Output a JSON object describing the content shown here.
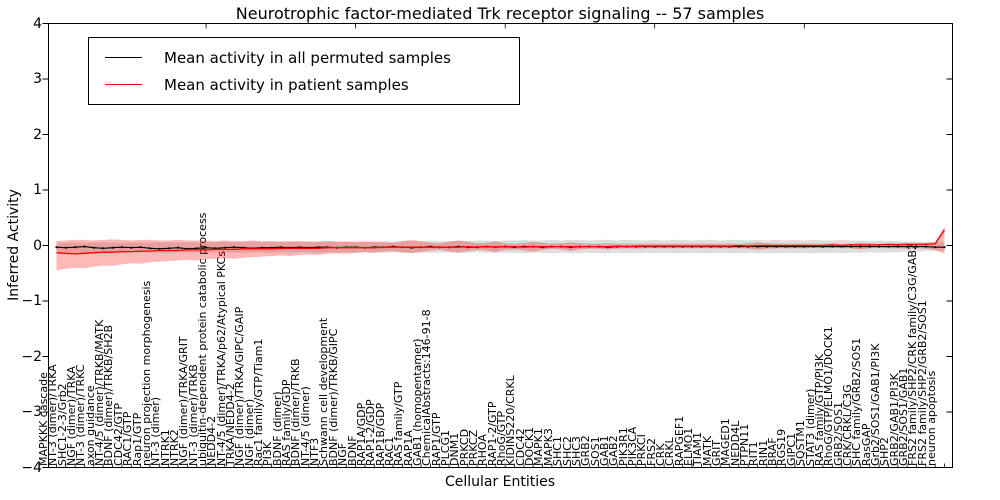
{
  "chart_data": {
    "type": "line",
    "title": "Neurotrophic factor-mediated Trk receptor signaling -- 57 samples",
    "xlabel": "Cellular Entities",
    "ylabel": "Inferred Activity",
    "ylim": [
      -4,
      4
    ],
    "yticks": [
      4,
      3,
      2,
      1,
      0,
      -1,
      -2,
      -3,
      -4
    ],
    "ytick_labels": [
      "4",
      "3",
      "2",
      "1",
      "0",
      "−1",
      "−2",
      "−3",
      "−4"
    ],
    "grid": false,
    "legend_position": "upper left",
    "n_points": 96,
    "x_labels": [
      "MAPKKK cascade",
      "NT-3 (dimer)/TRKA",
      "SHC1-2-3/Grb2",
      "NGF (dimer)/TRKA",
      "NT-3 (dimer)/TRKC",
      "axon guidance",
      "NT-4/5 (dimer)/TRKB/MATK",
      "BDNF (dimer)/TRKB/SH2B",
      "CDC42/GTP",
      "RAC1/GTP",
      "Rap1/GTP",
      "neuron projection morphogenesis",
      "NT-3 (dimer)",
      "NTRK1",
      "NTRK2",
      "NGF (dimer)/TRKA/GRIT",
      "NT-3 (dimer)/TRKB",
      "ubiquitin-dependent protein catabolic process",
      "NEDD4-2",
      "NT-4/5 (dimer)/TRKA/p62/Atypical PKCs",
      "TRKA/NEDD4-2",
      "NGF (dimer)/TRKA/GIPC/GAIP",
      "NGF (dimer)",
      "Rac1 family/GTP/Tiam1",
      "PI3K",
      "BDNF (dimer)",
      "RAS family/GDP",
      "BDNF (dimer)/TRKB",
      "NT-4/5 (dimer)",
      "NTF3",
      "Schwann cell development",
      "BDNF (dimer)/TRKB/GIPC",
      "NGF",
      "BDNF",
      "RAP1A/GDP",
      "RAP1-2/GDP",
      "RAP1B/GDP",
      "RAC1",
      "RAS family/GTP",
      "RAP1A",
      "GAB1 (homopentamer)",
      "ChemicalAbstracts:146-91-8",
      "RAP1/GTP",
      "PLCG1",
      "DNM1",
      "PRKCD",
      "PRKCZ",
      "RHOA",
      "RAP1-2/GTP",
      "RhoG/GTP",
      "KIDINS220/CRKL",
      "CDC42",
      "DOCK1",
      "MAPK1",
      "MAPK3",
      "SHC1",
      "SHC2",
      "SHC3",
      "GRB2",
      "SOS1",
      "GAB1",
      "GAB2",
      "PIK3R1",
      "PIK3CA",
      "PRKCI",
      "FRS2",
      "CRK",
      "CRKL",
      "RAPGEF1",
      "ELMO1",
      "TIAM1",
      "MATK",
      "GRIT",
      "MAGED1",
      "NEDD4L",
      "PTPN11",
      "RIT1",
      "RIN1",
      "BRAF",
      "RGS19",
      "GIPC1",
      "SQSTM1",
      "STAT3 (dimer)",
      "RAS family/GTP/PI3K",
      "RhoG/GTP/ELMO1/DOCK1",
      "GRB2/SOS1",
      "CRK/CRKL/C3G",
      "SHC family/GRB2/SOS1",
      "RasGAP",
      "Grb2/SOS1/GAB1/PI3K",
      "SHP2",
      "GRB2/GAB1/PI3K",
      "GRB2/SOS1/GAB1",
      "FRS2 family/SHP2/CRK family/C3G/GAB2",
      "FRS2 family/SHP2/GRB2/SOS1",
      "neuron apoptosis"
    ],
    "series": [
      {
        "name": "Mean activity in all permuted samples",
        "color": "#000000",
        "marker": "dot",
        "band_color": "rgba(0,0,0,0.13)",
        "values": [
          -0.03,
          -0.04,
          -0.03,
          -0.02,
          -0.04,
          -0.05,
          -0.04,
          -0.03,
          -0.04,
          -0.03,
          -0.05,
          -0.06,
          -0.05,
          -0.04,
          -0.06,
          -0.05,
          -0.04,
          -0.05,
          -0.04,
          -0.03,
          -0.04,
          -0.05,
          -0.04,
          -0.04,
          -0.03,
          -0.04,
          -0.03,
          -0.04,
          -0.03,
          -0.03,
          -0.04,
          -0.03,
          -0.03,
          -0.04,
          -0.03,
          -0.03,
          -0.02,
          -0.03,
          -0.04,
          -0.03,
          -0.02,
          -0.03,
          -0.03,
          -0.02,
          -0.03,
          -0.03,
          -0.02,
          -0.03,
          -0.02,
          -0.03,
          -0.02,
          -0.02,
          -0.03,
          -0.02,
          -0.02,
          -0.03,
          -0.02,
          -0.02,
          -0.02,
          -0.03,
          -0.02,
          -0.02,
          -0.02,
          -0.02,
          -0.02,
          -0.02,
          -0.02,
          -0.02,
          -0.02,
          -0.02,
          -0.02,
          -0.02,
          -0.02,
          -0.02,
          -0.02,
          -0.02,
          -0.02,
          -0.02,
          -0.02,
          -0.02,
          -0.02,
          -0.02,
          -0.02,
          -0.02,
          -0.02,
          -0.02,
          -0.02,
          -0.02,
          -0.02,
          -0.02,
          -0.02,
          -0.02,
          -0.02,
          -0.02,
          -0.03,
          -0.03
        ],
        "band_upper": [
          0.05,
          0.05,
          0.06,
          0.05,
          0.05,
          0.06,
          0.05,
          0.05,
          0.06,
          0.05,
          0.05,
          0.06,
          0.06,
          0.05,
          0.06,
          0.06,
          0.06,
          0.06,
          0.07,
          0.06,
          0.06,
          0.07,
          0.06,
          0.07,
          0.07,
          0.06,
          0.07,
          0.07,
          0.07,
          0.08,
          0.07,
          0.07,
          0.08,
          0.07,
          0.08,
          0.08,
          0.07,
          0.08,
          0.08,
          0.08,
          0.09,
          0.08,
          0.08,
          0.09,
          0.08,
          0.09,
          0.09,
          0.08,
          0.09,
          0.09,
          0.1,
          0.09,
          0.09,
          0.1,
          0.09,
          0.1,
          0.1,
          0.09,
          0.1,
          0.1,
          0.09,
          0.1,
          0.1,
          0.09,
          0.1,
          0.09,
          0.1,
          0.1,
          0.09,
          0.1,
          0.1,
          0.09,
          0.1,
          0.1,
          0.09,
          0.1,
          0.09,
          0.1,
          0.09,
          0.1,
          0.09,
          0.1,
          0.09,
          0.09,
          0.1,
          0.09,
          0.09,
          0.08,
          0.09,
          0.08,
          0.08,
          0.07,
          0.07,
          0.06,
          0.06,
          0.05
        ],
        "band_lower": [
          -0.12,
          -0.12,
          -0.13,
          -0.12,
          -0.12,
          -0.13,
          -0.12,
          -0.12,
          -0.13,
          -0.12,
          -0.12,
          -0.13,
          -0.13,
          -0.12,
          -0.13,
          -0.13,
          -0.12,
          -0.13,
          -0.12,
          -0.12,
          -0.13,
          -0.12,
          -0.12,
          -0.13,
          -0.12,
          -0.13,
          -0.12,
          -0.12,
          -0.13,
          -0.12,
          -0.13,
          -0.12,
          -0.13,
          -0.12,
          -0.13,
          -0.13,
          -0.12,
          -0.13,
          -0.13,
          -0.12,
          -0.13,
          -0.13,
          -0.12,
          -0.13,
          -0.13,
          -0.12,
          -0.13,
          -0.13,
          -0.13,
          -0.13,
          -0.14,
          -0.13,
          -0.13,
          -0.14,
          -0.13,
          -0.14,
          -0.14,
          -0.13,
          -0.14,
          -0.14,
          -0.13,
          -0.14,
          -0.14,
          -0.13,
          -0.14,
          -0.13,
          -0.14,
          -0.14,
          -0.13,
          -0.14,
          -0.14,
          -0.13,
          -0.14,
          -0.14,
          -0.13,
          -0.14,
          -0.13,
          -0.14,
          -0.13,
          -0.14,
          -0.13,
          -0.14,
          -0.13,
          -0.13,
          -0.14,
          -0.13,
          -0.13,
          -0.12,
          -0.13,
          -0.12,
          -0.12,
          -0.11,
          -0.11,
          -0.1,
          -0.1,
          -0.1
        ]
      },
      {
        "name": "Mean activity in patient samples",
        "color": "#ff0000",
        "marker": "none",
        "band_color": "rgba(255,0,0,0.28)",
        "values": [
          -0.13,
          -0.14,
          -0.15,
          -0.14,
          -0.13,
          -0.12,
          -0.12,
          -0.11,
          -0.11,
          -0.1,
          -0.1,
          -0.09,
          -0.09,
          -0.09,
          -0.08,
          -0.08,
          -0.08,
          -0.07,
          -0.07,
          -0.07,
          -0.06,
          -0.06,
          -0.06,
          -0.06,
          -0.05,
          -0.05,
          -0.05,
          -0.05,
          -0.05,
          -0.04,
          -0.04,
          -0.04,
          -0.04,
          -0.04,
          -0.04,
          -0.03,
          -0.03,
          -0.03,
          -0.03,
          -0.03,
          -0.03,
          -0.03,
          -0.03,
          -0.03,
          -0.02,
          -0.03,
          -0.02,
          -0.03,
          -0.02,
          -0.02,
          -0.03,
          -0.02,
          -0.02,
          -0.02,
          -0.02,
          -0.02,
          -0.02,
          -0.02,
          -0.02,
          -0.02,
          -0.01,
          -0.02,
          -0.01,
          -0.01,
          -0.01,
          -0.01,
          -0.01,
          -0.01,
          -0.01,
          -0.01,
          -0.01,
          -0.01,
          -0.01,
          0.0,
          -0.01,
          0.0,
          0.0,
          0.0,
          0.0,
          0.0,
          0.0,
          0.0,
          0.0,
          0.01,
          0.0,
          0.01,
          0.01,
          0.01,
          0.01,
          0.02,
          0.01,
          0.02,
          0.02,
          0.02,
          0.03,
          0.28
        ],
        "band_upper": [
          0.08,
          0.09,
          0.1,
          0.1,
          0.09,
          0.1,
          0.11,
          0.1,
          0.09,
          0.1,
          0.1,
          0.09,
          0.09,
          0.1,
          0.09,
          0.09,
          0.09,
          0.08,
          0.09,
          0.08,
          0.08,
          0.09,
          0.08,
          0.08,
          0.07,
          0.08,
          0.08,
          0.07,
          0.07,
          0.08,
          0.07,
          0.07,
          0.06,
          0.07,
          0.06,
          0.06,
          0.05,
          0.08,
          0.1,
          0.08,
          0.05,
          0.04,
          0.07,
          0.09,
          0.07,
          0.04,
          0.05,
          0.08,
          0.04,
          0.03,
          0.05,
          0.07,
          0.05,
          0.03,
          0.04,
          0.06,
          0.04,
          0.03,
          0.03,
          0.04,
          0.03,
          0.03,
          0.03,
          0.03,
          0.03,
          0.03,
          0.03,
          0.03,
          0.03,
          0.03,
          0.03,
          0.03,
          0.03,
          0.03,
          0.04,
          0.06,
          0.04,
          0.03,
          0.03,
          0.03,
          0.03,
          0.03,
          0.03,
          0.04,
          0.03,
          0.03,
          0.05,
          0.04,
          0.03,
          0.04,
          0.04,
          0.05,
          0.04,
          0.05,
          0.06,
          0.35
        ],
        "band_lower": [
          -0.45,
          -0.42,
          -0.4,
          -0.41,
          -0.38,
          -0.36,
          -0.37,
          -0.34,
          -0.32,
          -0.33,
          -0.3,
          -0.29,
          -0.28,
          -0.27,
          -0.26,
          -0.27,
          -0.25,
          -0.24,
          -0.23,
          -0.24,
          -0.22,
          -0.21,
          -0.2,
          -0.19,
          -0.18,
          -0.19,
          -0.17,
          -0.16,
          -0.17,
          -0.15,
          -0.14,
          -0.15,
          -0.13,
          -0.12,
          -0.13,
          -0.11,
          -0.1,
          -0.12,
          -0.14,
          -0.12,
          -0.09,
          -0.08,
          -0.11,
          -0.13,
          -0.1,
          -0.08,
          -0.09,
          -0.12,
          -0.08,
          -0.07,
          -0.09,
          -0.11,
          -0.08,
          -0.06,
          -0.07,
          -0.1,
          -0.07,
          -0.06,
          -0.06,
          -0.07,
          -0.06,
          -0.05,
          -0.06,
          -0.05,
          -0.05,
          -0.05,
          -0.05,
          -0.05,
          -0.05,
          -0.05,
          -0.05,
          -0.05,
          -0.05,
          -0.05,
          -0.06,
          -0.08,
          -0.06,
          -0.05,
          -0.05,
          -0.05,
          -0.05,
          -0.04,
          -0.05,
          -0.04,
          -0.05,
          -0.05,
          -0.07,
          -0.05,
          -0.04,
          -0.05,
          -0.05,
          -0.06,
          -0.05,
          -0.06,
          -0.08,
          -0.15
        ]
      }
    ]
  }
}
